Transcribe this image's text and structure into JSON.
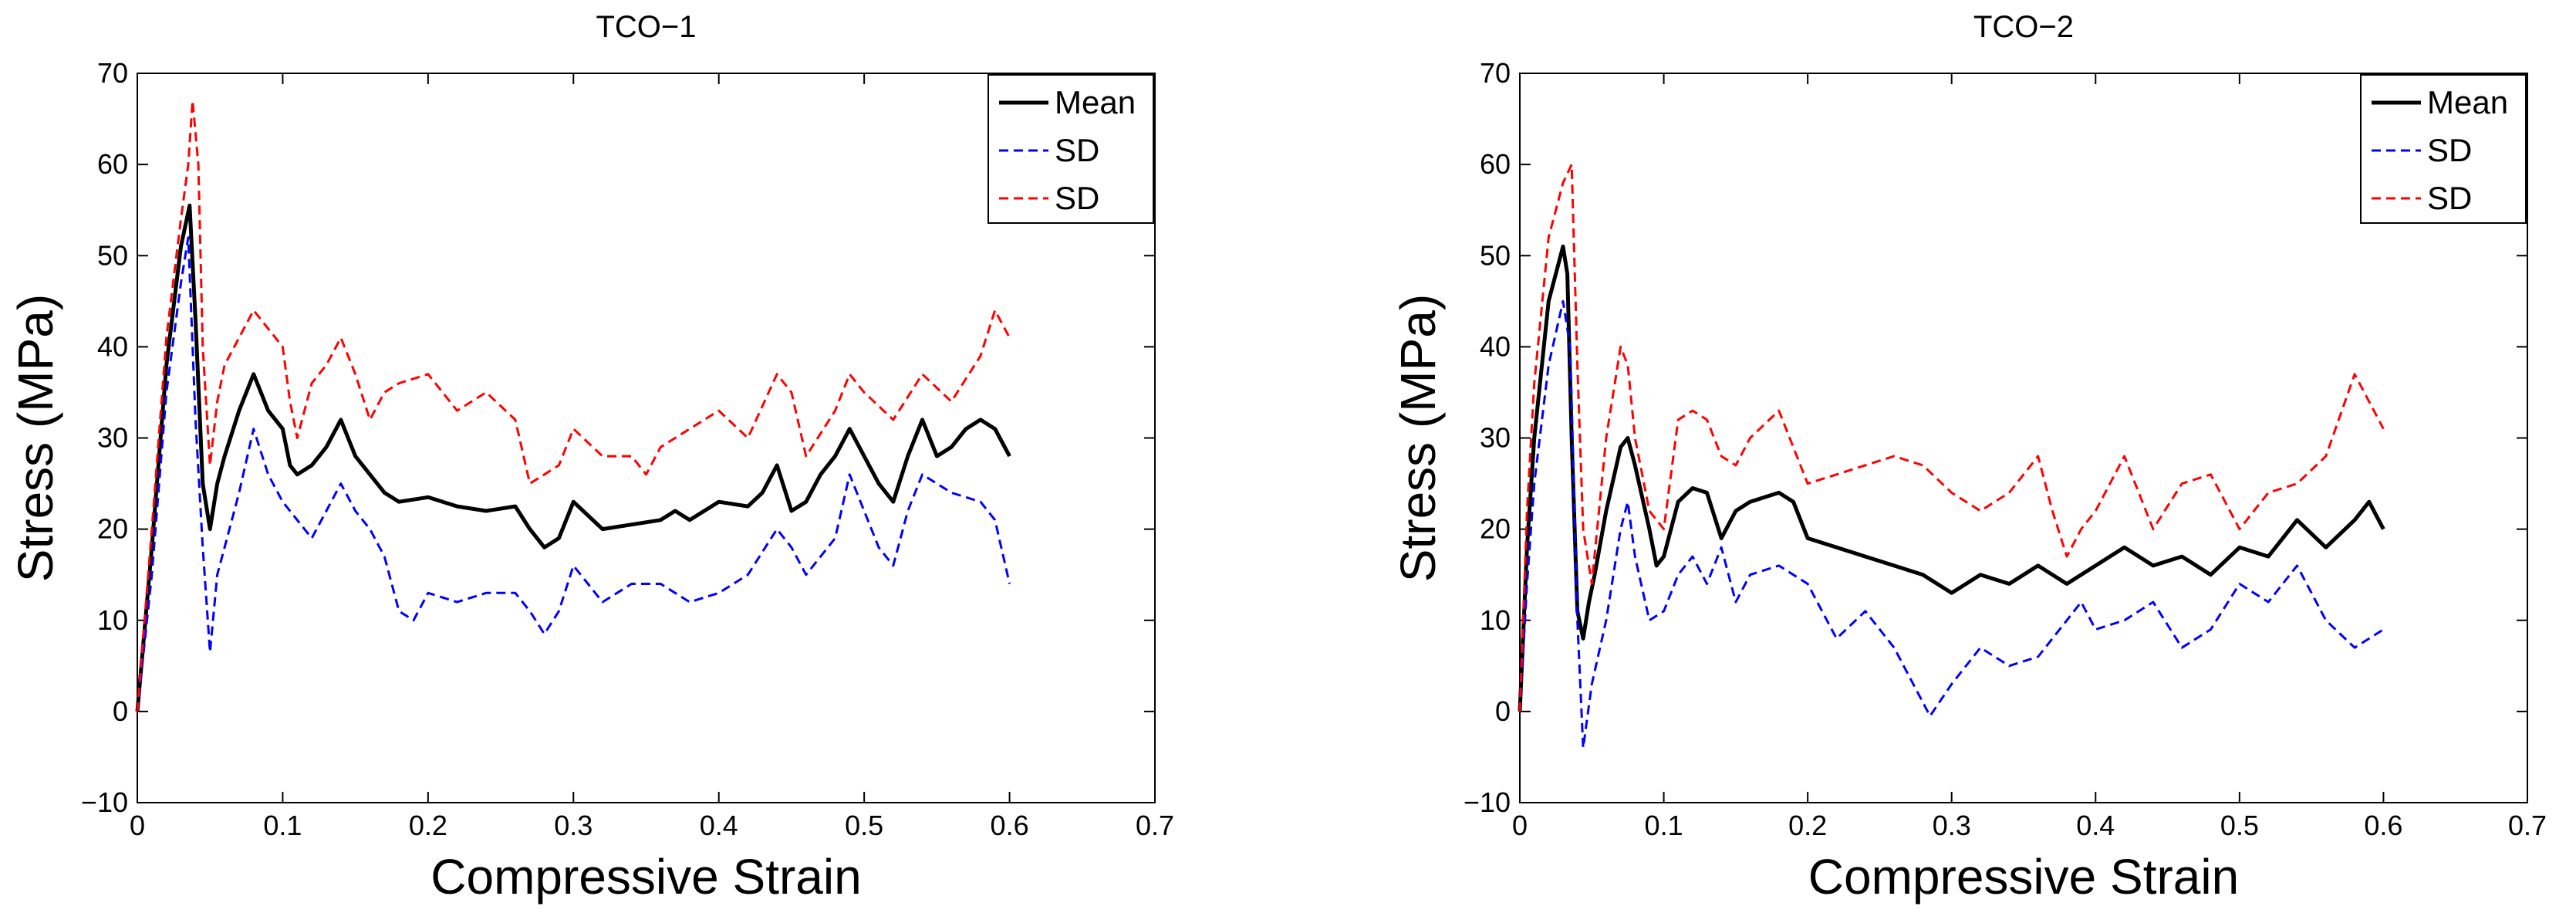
{
  "chart_data": [
    {
      "type": "line",
      "title": "TCO−1",
      "xlabel": "Compressive Strain",
      "ylabel": "Stress (MPa)",
      "xlim": [
        0,
        0.7
      ],
      "ylim": [
        -10,
        70
      ],
      "xticks": [
        0,
        0.1,
        0.2,
        0.3,
        0.4,
        0.5,
        0.6,
        0.7
      ],
      "xtick_labels": [
        "0",
        "0.1",
        "0.2",
        "0.3",
        "0.4",
        "0.5",
        "0.6",
        "0.7"
      ],
      "yticks": [
        -10,
        0,
        10,
        20,
        30,
        40,
        50,
        60,
        70
      ],
      "ytick_labels": [
        "−10",
        "0",
        "10",
        "20",
        "30",
        "40",
        "50",
        "60",
        "70"
      ],
      "grid": false,
      "legend_position": "top-right",
      "series": [
        {
          "name": "Mean",
          "color": "#000000",
          "style": "solid",
          "x": [
            0,
            0.01,
            0.02,
            0.03,
            0.036,
            0.04,
            0.045,
            0.05,
            0.055,
            0.06,
            0.07,
            0.08,
            0.085,
            0.09,
            0.1,
            0.105,
            0.11,
            0.12,
            0.13,
            0.14,
            0.15,
            0.16,
            0.17,
            0.18,
            0.2,
            0.22,
            0.24,
            0.26,
            0.27,
            0.28,
            0.29,
            0.3,
            0.32,
            0.34,
            0.36,
            0.37,
            0.38,
            0.4,
            0.42,
            0.43,
            0.44,
            0.45,
            0.46,
            0.47,
            0.48,
            0.49,
            0.5,
            0.51,
            0.52,
            0.53,
            0.54,
            0.55,
            0.56,
            0.57,
            0.58,
            0.59,
            0.6
          ],
          "y": [
            0,
            18,
            38,
            51,
            55.5,
            43,
            25,
            20,
            25,
            28,
            33,
            37,
            35,
            33,
            31,
            27,
            26,
            27,
            29,
            32,
            28,
            26,
            24,
            23,
            23.5,
            22.5,
            22,
            22.5,
            20,
            18,
            19,
            23,
            20,
            20.5,
            21,
            22,
            21,
            23,
            22.5,
            24,
            27,
            22,
            23,
            26,
            28,
            31,
            28,
            25,
            23,
            28,
            32,
            28,
            29,
            31,
            32,
            31,
            28
          ]
        },
        {
          "name": "SD",
          "color": "#0000ff",
          "style": "dashed",
          "x": [
            0,
            0.01,
            0.02,
            0.03,
            0.035,
            0.04,
            0.045,
            0.05,
            0.055,
            0.06,
            0.07,
            0.08,
            0.09,
            0.1,
            0.11,
            0.12,
            0.13,
            0.14,
            0.15,
            0.16,
            0.17,
            0.18,
            0.19,
            0.2,
            0.22,
            0.24,
            0.26,
            0.27,
            0.28,
            0.29,
            0.3,
            0.32,
            0.34,
            0.36,
            0.38,
            0.4,
            0.42,
            0.44,
            0.45,
            0.46,
            0.48,
            0.49,
            0.5,
            0.51,
            0.52,
            0.53,
            0.54,
            0.56,
            0.58,
            0.59,
            0.6
          ],
          "y": [
            0,
            15,
            35,
            47,
            52,
            32,
            18,
            6.5,
            15,
            18,
            24,
            31,
            26,
            23,
            21,
            19,
            22,
            25,
            22,
            20,
            17,
            11,
            10,
            13,
            12,
            13,
            13,
            11,
            8.5,
            11,
            16,
            12,
            14,
            14,
            12,
            13,
            15,
            20,
            18,
            15,
            19,
            26,
            22,
            18,
            16,
            22,
            26,
            24,
            23,
            21,
            14
          ]
        },
        {
          "name": "SD",
          "color": "#ff0000",
          "style": "dashed",
          "x": [
            0,
            0.01,
            0.02,
            0.03,
            0.035,
            0.038,
            0.042,
            0.045,
            0.05,
            0.055,
            0.06,
            0.07,
            0.08,
            0.09,
            0.1,
            0.105,
            0.11,
            0.12,
            0.13,
            0.14,
            0.15,
            0.16,
            0.17,
            0.18,
            0.2,
            0.22,
            0.24,
            0.26,
            0.27,
            0.28,
            0.29,
            0.3,
            0.32,
            0.34,
            0.35,
            0.36,
            0.38,
            0.4,
            0.42,
            0.44,
            0.45,
            0.46,
            0.48,
            0.49,
            0.5,
            0.52,
            0.54,
            0.56,
            0.58,
            0.59,
            0.6
          ],
          "y": [
            0,
            20,
            41,
            54,
            60,
            67,
            60,
            40,
            27,
            34,
            38,
            41,
            44,
            42,
            40,
            34,
            30,
            36,
            38,
            41,
            37,
            32,
            35,
            36,
            37,
            33,
            35,
            32,
            25,
            26,
            27,
            31,
            28,
            28,
            26,
            29,
            31,
            33,
            30,
            37,
            35,
            28,
            33,
            37,
            35,
            32,
            37,
            34,
            39,
            44,
            41
          ]
        }
      ]
    },
    {
      "type": "line",
      "title": "TCO−2",
      "xlabel": "Compressive Strain",
      "ylabel": "Stress (MPa)",
      "xlim": [
        0,
        0.7
      ],
      "ylim": [
        -10,
        70
      ],
      "xticks": [
        0,
        0.1,
        0.2,
        0.3,
        0.4,
        0.5,
        0.6,
        0.7
      ],
      "xtick_labels": [
        "0",
        "0.1",
        "0.2",
        "0.3",
        "0.4",
        "0.5",
        "0.6",
        "0.7"
      ],
      "yticks": [
        -10,
        0,
        10,
        20,
        30,
        40,
        50,
        60,
        70
      ],
      "ytick_labels": [
        "−10",
        "0",
        "10",
        "20",
        "30",
        "40",
        "50",
        "60",
        "70"
      ],
      "grid": false,
      "legend_position": "top-right",
      "series": [
        {
          "name": "Mean",
          "color": "#000000",
          "style": "solid",
          "x": [
            0,
            0.005,
            0.01,
            0.02,
            0.03,
            0.033,
            0.036,
            0.04,
            0.044,
            0.048,
            0.052,
            0.06,
            0.07,
            0.075,
            0.08,
            0.09,
            0.095,
            0.1,
            0.11,
            0.12,
            0.13,
            0.14,
            0.15,
            0.16,
            0.18,
            0.19,
            0.2,
            0.22,
            0.24,
            0.26,
            0.28,
            0.3,
            0.32,
            0.34,
            0.36,
            0.37,
            0.38,
            0.4,
            0.42,
            0.44,
            0.46,
            0.48,
            0.5,
            0.52,
            0.54,
            0.56,
            0.58,
            0.59,
            0.6
          ],
          "y": [
            0,
            18,
            30,
            45,
            51,
            48,
            30,
            11,
            8,
            12,
            15,
            22,
            29,
            30,
            27,
            20,
            16,
            17,
            23,
            24.5,
            24,
            19,
            22,
            23,
            24,
            23,
            19,
            18,
            17,
            16,
            15,
            13,
            15,
            14,
            16,
            15,
            14,
            16,
            18,
            16,
            17,
            15,
            18,
            17,
            21,
            18,
            21,
            23,
            20
          ]
        },
        {
          "name": "SD",
          "color": "#0000ff",
          "style": "dashed",
          "x": [
            0,
            0.005,
            0.01,
            0.02,
            0.03,
            0.035,
            0.04,
            0.044,
            0.05,
            0.06,
            0.07,
            0.075,
            0.08,
            0.09,
            0.1,
            0.11,
            0.12,
            0.13,
            0.14,
            0.15,
            0.16,
            0.18,
            0.2,
            0.22,
            0.24,
            0.26,
            0.28,
            0.285,
            0.3,
            0.32,
            0.34,
            0.36,
            0.38,
            0.39,
            0.4,
            0.42,
            0.44,
            0.46,
            0.48,
            0.5,
            0.52,
            0.54,
            0.56,
            0.58,
            0.6
          ],
          "y": [
            0,
            14,
            25,
            38,
            45,
            40,
            10,
            -4,
            3,
            10,
            20,
            23,
            17,
            10,
            11,
            15,
            17,
            14,
            18,
            12,
            15,
            16,
            14,
            8,
            11,
            7,
            1,
            -0.5,
            3,
            7,
            5,
            6,
            10,
            12,
            9,
            10,
            12,
            7,
            9,
            14,
            12,
            16,
            10,
            7,
            9
          ]
        },
        {
          "name": "SD",
          "color": "#ff0000",
          "style": "dashed",
          "x": [
            0,
            0.005,
            0.01,
            0.02,
            0.03,
            0.036,
            0.04,
            0.044,
            0.05,
            0.06,
            0.07,
            0.075,
            0.08,
            0.09,
            0.1,
            0.11,
            0.12,
            0.13,
            0.14,
            0.15,
            0.16,
            0.18,
            0.2,
            0.22,
            0.24,
            0.26,
            0.28,
            0.3,
            0.32,
            0.34,
            0.36,
            0.37,
            0.38,
            0.39,
            0.4,
            0.42,
            0.44,
            0.46,
            0.48,
            0.5,
            0.52,
            0.54,
            0.56,
            0.58,
            0.6
          ],
          "y": [
            0,
            22,
            36,
            52,
            58,
            60,
            38,
            20,
            14,
            30,
            40,
            38,
            30,
            22,
            20,
            32,
            33,
            32,
            28,
            27,
            30,
            33,
            25,
            26,
            27,
            28,
            27,
            24,
            22,
            24,
            28,
            22,
            17,
            20,
            22,
            28,
            20,
            25,
            26,
            20,
            24,
            25,
            28,
            37,
            31
          ]
        }
      ]
    }
  ]
}
